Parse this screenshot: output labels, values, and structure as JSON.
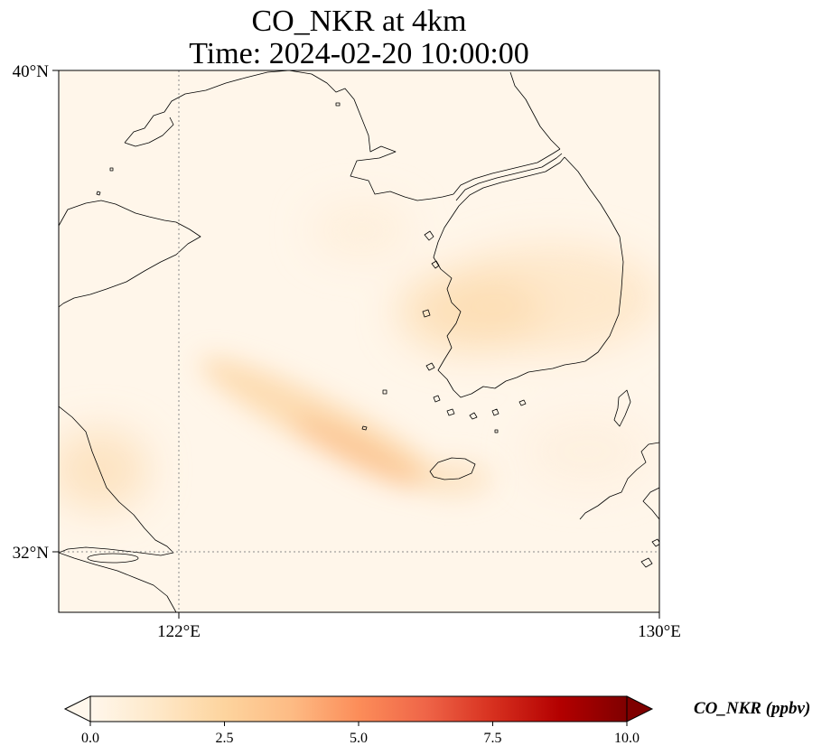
{
  "title": {
    "line1": "CO_NKR at 4km",
    "line2": "Time: 2024-02-20 10:00:00"
  },
  "axes": {
    "lat_ticks": [
      {
        "lat": 40,
        "label": "40°N"
      },
      {
        "lat": 32,
        "label": "32°N"
      }
    ],
    "lon_ticks": [
      {
        "lon": 122,
        "label": "122°E"
      },
      {
        "lon": 130,
        "label": "130°E"
      }
    ],
    "lon_range": [
      120,
      130
    ],
    "lat_range": [
      31,
      40
    ],
    "gridlines": "dotted at 122°E and 32°N"
  },
  "colorbar": {
    "label": "CO_NKR (ppbv)",
    "ticks": [
      "0.0",
      "2.5",
      "5.0",
      "7.5",
      "10.0"
    ],
    "range": [
      0,
      10
    ],
    "colormap": "OrRd",
    "colors": [
      "#fff7ec",
      "#fee8c8",
      "#fdd49e",
      "#fdbb84",
      "#fc8d59",
      "#ef6548",
      "#d7301f",
      "#b30000",
      "#7f0000"
    ],
    "extend": "both"
  },
  "map_data": {
    "background_value_ppbv": 0.2,
    "features": [
      {
        "name": "band southwest of Jeju",
        "peak_value_ppbv": 2.2
      },
      {
        "name": "western Korea coast",
        "peak_value_ppbv": 1.6
      },
      {
        "name": "eastern Korea",
        "peak_value_ppbv": 1.2
      },
      {
        "name": "near Shanghai coast",
        "peak_value_ppbv": 1.4
      },
      {
        "name": "Yellow Sea north",
        "peak_value_ppbv": 0.9
      }
    ]
  }
}
